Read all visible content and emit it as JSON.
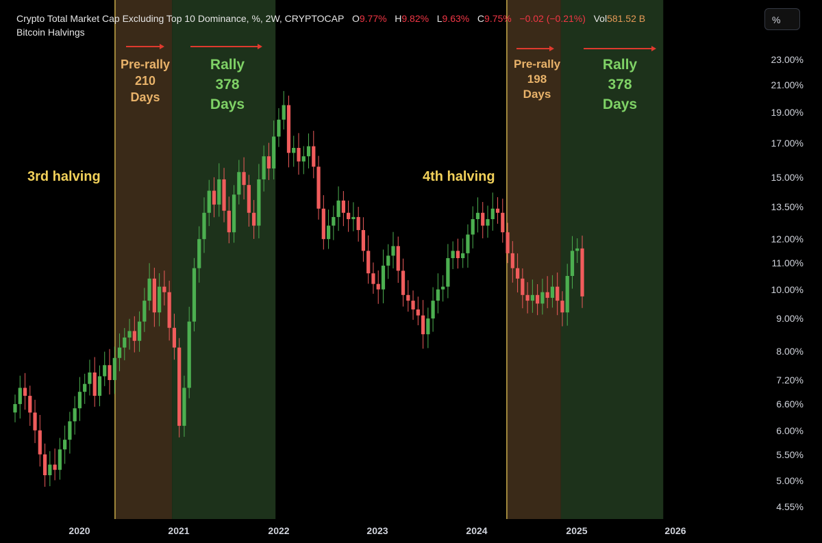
{
  "header": {
    "title": "Crypto Total Market Cap Excluding Top 10 Dominance, %, 2W, CRYPTOCAP",
    "o_label": "O",
    "o_value": "9.77%",
    "h_label": "H",
    "h_value": "9.82%",
    "l_label": "L",
    "l_value": "9.63%",
    "c_label": "C",
    "c_value": "9.75%",
    "change": "−0.02 (−0.21%)",
    "vol_label": "Vol",
    "vol_value": "581.52 B",
    "indicator": "Bitcoin Halvings",
    "scale_button": "%"
  },
  "colors": {
    "up": "#4caf50",
    "down": "#f05c5c",
    "prerally_zone": "#3a2a18",
    "rally_zone": "#1d321b",
    "halving_line": "#f2d15a",
    "arrow": "#e03a2e"
  },
  "annotations": {
    "halving3": "3rd halving",
    "halving4": "4th halving",
    "prerally1": "Pre-rally\n210\nDays",
    "rally1": "Rally\n378\nDays",
    "prerally2": "Pre-rally\n198\nDays",
    "rally2": "Rally\n378\nDays"
  },
  "chart_data": {
    "type": "candlestick",
    "title": "Crypto Total Market Cap Excluding Top 10 Dominance, %, 2W, CRYPTOCAP",
    "y_scale": "log",
    "y_ticks": [
      "23.00%",
      "21.00%",
      "19.00%",
      "17.00%",
      "15.00%",
      "13.50%",
      "12.00%",
      "11.00%",
      "10.00%",
      "9.00%",
      "8.00%",
      "7.20%",
      "6.60%",
      "6.00%",
      "5.50%",
      "5.00%",
      "4.55%"
    ],
    "x_ticks": [
      "2020",
      "2021",
      "2022",
      "2023",
      "2024",
      "2025",
      "2026"
    ],
    "halvings": [
      "2020-05-11",
      "2024-04-20"
    ],
    "zones": [
      {
        "kind": "pre-rally",
        "start": "2020-05-11",
        "end": "2020-12-07",
        "days": 210
      },
      {
        "kind": "rally",
        "start": "2020-12-07",
        "end": "2021-12-20",
        "days": 378
      },
      {
        "kind": "pre-rally",
        "start": "2024-04-20",
        "end": "2024-11-04",
        "days": 198
      },
      {
        "kind": "rally",
        "start": "2024-11-04",
        "end": "2025-11-17",
        "days": 378
      }
    ],
    "close_series": [
      6.6,
      7.0,
      6.8,
      6.4,
      6.0,
      5.5,
      5.1,
      5.3,
      5.2,
      5.6,
      5.8,
      6.2,
      6.5,
      6.9,
      7.1,
      7.4,
      6.8,
      7.3,
      7.6,
      7.2,
      7.8,
      8.1,
      8.4,
      8.6,
      8.3,
      8.9,
      9.6,
      10.4,
      9.2,
      10.1,
      9.9,
      8.7,
      8.1,
      6.1,
      7.0,
      8.9,
      10.8,
      12.0,
      13.2,
      14.3,
      13.6,
      14.9,
      13.3,
      12.3,
      14.1,
      15.3,
      14.6,
      13.2,
      12.6,
      14.9,
      16.2,
      15.5,
      17.4,
      18.5,
      19.5,
      16.4,
      16.7,
      15.9,
      16.2,
      16.8,
      15.6,
      13.4,
      12.0,
      12.6,
      13.0,
      13.8,
      13.2,
      12.9,
      13.0,
      12.4,
      11.5,
      10.6,
      10.2,
      10.0,
      10.9,
      11.3,
      11.7,
      10.7,
      9.8,
      9.6,
      9.3,
      9.1,
      8.5,
      9.0,
      9.6,
      10.0,
      10.1,
      11.2,
      11.5,
      11.2,
      11.4,
      12.2,
      12.9,
      13.2,
      12.6,
      12.9,
      13.4,
      13.2,
      12.3,
      11.4,
      10.8,
      10.4,
      9.8,
      9.6,
      9.8,
      9.5,
      9.9,
      9.7,
      10.1,
      9.6,
      9.2,
      10.5,
      11.5,
      11.6,
      9.75
    ],
    "last_close": 9.75
  }
}
